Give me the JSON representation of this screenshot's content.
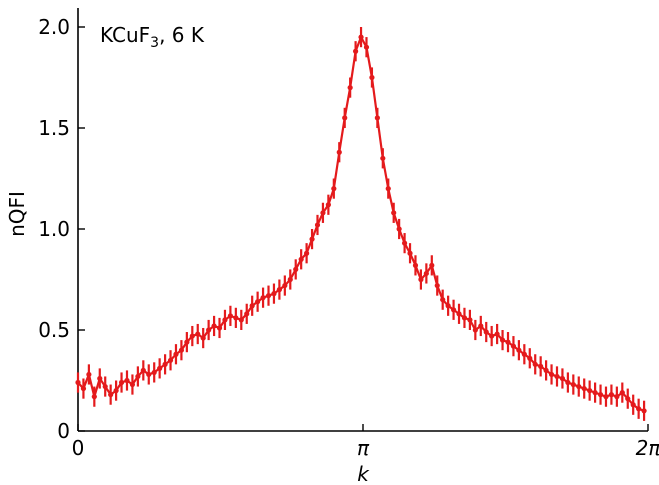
{
  "chart_data": {
    "type": "line",
    "ylabel": "nQFI",
    "xlabel": "k",
    "annotation": {
      "prefix": "KCuF",
      "subscript": "3",
      "suffix": ", 6 K"
    },
    "xlim": [
      0,
      6.2832
    ],
    "ylim": [
      0,
      2.1
    ],
    "x_ticks": [
      {
        "value": 0,
        "label": "0"
      },
      {
        "value": 3.1416,
        "label": "π"
      },
      {
        "value": 6.2832,
        "label": "2π"
      }
    ],
    "y_ticks": [
      {
        "value": 0,
        "label": "0"
      },
      {
        "value": 0.5,
        "label": "0.5"
      },
      {
        "value": 1.0,
        "label": "1.0"
      },
      {
        "value": 1.5,
        "label": "1.5"
      },
      {
        "value": 2.0,
        "label": "2.0"
      }
    ],
    "color": "#e41a1c",
    "error": 0.05,
    "legend": "none",
    "grid": false,
    "series": [
      {
        "x": [
          0.0,
          0.06,
          0.12,
          0.18,
          0.24,
          0.3,
          0.36,
          0.42,
          0.48,
          0.54,
          0.6,
          0.66,
          0.72,
          0.78,
          0.84,
          0.9,
          0.96,
          1.02,
          1.08,
          1.14,
          1.2,
          1.26,
          1.32,
          1.38,
          1.44,
          1.5,
          1.56,
          1.62,
          1.68,
          1.74,
          1.8,
          1.86,
          1.92,
          1.98,
          2.04,
          2.1,
          2.16,
          2.22,
          2.28,
          2.34,
          2.4,
          2.46,
          2.52,
          2.58,
          2.64,
          2.7,
          2.76,
          2.82,
          2.88,
          2.94,
          3.0,
          3.06,
          3.12,
          3.18,
          3.24,
          3.3,
          3.36,
          3.42,
          3.48,
          3.54,
          3.6,
          3.66,
          3.72,
          3.78,
          3.84,
          3.9,
          3.96,
          4.02,
          4.08,
          4.14,
          4.2,
          4.26,
          4.32,
          4.38,
          4.44,
          4.5,
          4.56,
          4.62,
          4.68,
          4.74,
          4.8,
          4.86,
          4.92,
          4.98,
          5.04,
          5.1,
          5.16,
          5.22,
          5.28,
          5.34,
          5.4,
          5.46,
          5.52,
          5.58,
          5.64,
          5.7,
          5.76,
          5.82,
          5.88,
          5.94,
          6.0,
          6.06,
          6.12,
          6.18,
          6.24
        ],
        "y": [
          0.24,
          0.21,
          0.28,
          0.17,
          0.26,
          0.22,
          0.18,
          0.2,
          0.24,
          0.25,
          0.23,
          0.27,
          0.3,
          0.28,
          0.29,
          0.31,
          0.33,
          0.35,
          0.38,
          0.4,
          0.44,
          0.47,
          0.48,
          0.46,
          0.5,
          0.52,
          0.51,
          0.55,
          0.57,
          0.56,
          0.55,
          0.58,
          0.62,
          0.64,
          0.66,
          0.67,
          0.68,
          0.7,
          0.72,
          0.75,
          0.8,
          0.85,
          0.88,
          0.95,
          1.02,
          1.08,
          1.12,
          1.2,
          1.38,
          1.55,
          1.7,
          1.88,
          1.95,
          1.9,
          1.75,
          1.55,
          1.35,
          1.2,
          1.08,
          1.0,
          0.93,
          0.88,
          0.82,
          0.75,
          0.78,
          0.82,
          0.72,
          0.65,
          0.62,
          0.6,
          0.58,
          0.56,
          0.55,
          0.5,
          0.52,
          0.49,
          0.47,
          0.48,
          0.45,
          0.44,
          0.42,
          0.4,
          0.38,
          0.36,
          0.33,
          0.32,
          0.3,
          0.28,
          0.27,
          0.26,
          0.24,
          0.23,
          0.22,
          0.21,
          0.2,
          0.19,
          0.18,
          0.17,
          0.18,
          0.17,
          0.19,
          0.16,
          0.13,
          0.11,
          0.1
        ]
      }
    ]
  }
}
